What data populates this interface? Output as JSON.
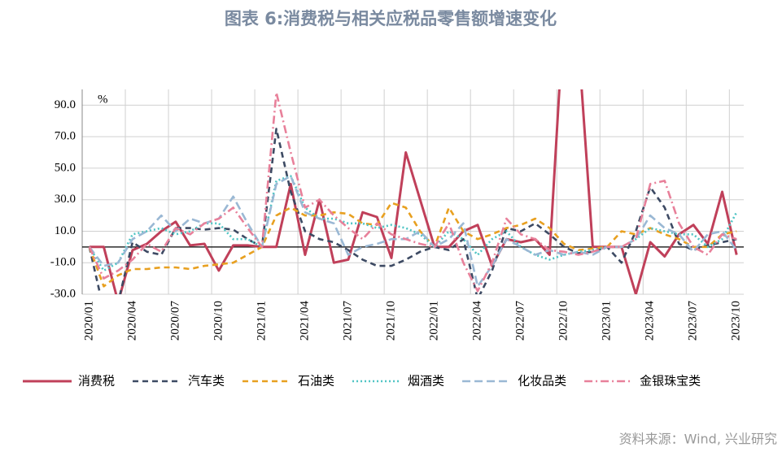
{
  "chart_data": {
    "type": "line",
    "title": "图表 6:消费税与相关应税品零售额增速变化",
    "source": "资料来源：Wind, 兴业研究",
    "unit": "%",
    "categories": [
      "2020/01",
      null,
      null,
      "2020/04",
      null,
      null,
      "2020/07",
      null,
      null,
      "2020/10",
      null,
      null,
      "2021/01",
      null,
      null,
      "2021/04",
      null,
      null,
      "2021/07",
      null,
      null,
      "2021/10",
      null,
      null,
      "2022/01",
      null,
      null,
      "2022/04",
      null,
      null,
      "2022/07",
      null,
      null,
      "2022/10",
      null,
      null,
      "2023/01",
      null,
      null,
      "2023/04",
      null,
      null,
      "2023/07",
      null,
      null,
      "2023/10"
    ],
    "ylim": [
      -30,
      100
    ],
    "yticks": [
      {
        "value": -30,
        "label": "-30.0"
      },
      {
        "value": -10,
        "label": "-10.0"
      },
      {
        "value": 10,
        "label": "10.0"
      },
      {
        "value": 30,
        "label": "30.0"
      },
      {
        "value": 50,
        "label": "50.0"
      },
      {
        "value": 70,
        "label": "70.0"
      },
      {
        "value": 90,
        "label": "90.0"
      }
    ],
    "grid": true,
    "legend": "bottom",
    "series": [
      {
        "name": "消费税",
        "color": "#c0405a",
        "dash": "solid",
        "values": [
          0,
          0,
          -35,
          -2,
          2,
          10,
          16,
          1,
          2,
          -15,
          1,
          1,
          0,
          0,
          40,
          -5,
          30,
          -10,
          -8,
          22,
          19,
          -7,
          60,
          30,
          0,
          0,
          10,
          14,
          -12,
          5,
          3,
          5,
          -5,
          150,
          130,
          0,
          0,
          0,
          -30,
          3,
          -6,
          8,
          14,
          2,
          35,
          -5
        ]
      },
      {
        "name": "汽车类",
        "color": "#3d4a63",
        "dash": "dash",
        "values": [
          0,
          -40,
          -35,
          3,
          -3,
          -5,
          12,
          12,
          11,
          12,
          11,
          5,
          0,
          75,
          35,
          10,
          5,
          3,
          -2,
          -8,
          -12,
          -12,
          -8,
          -3,
          0,
          -2,
          5,
          -33,
          -15,
          12,
          10,
          15,
          8,
          0,
          -4,
          -3,
          0,
          -10,
          10,
          38,
          25,
          2,
          -2,
          1,
          3,
          5
        ]
      },
      {
        "name": "石油类",
        "color": "#e8a020",
        "dash": "dash",
        "values": [
          0,
          -25,
          -18,
          -14,
          -14,
          -13,
          -13,
          -14,
          -12,
          -11,
          -10,
          -5,
          0,
          20,
          25,
          20,
          20,
          22,
          21,
          15,
          14,
          28,
          25,
          10,
          0,
          25,
          10,
          5,
          8,
          12,
          14,
          18,
          12,
          2,
          -2,
          -1,
          0,
          10,
          8,
          12,
          8,
          5,
          0,
          0,
          8,
          10
        ]
      },
      {
        "name": "烟酒类",
        "color": "#4fc4c4",
        "dash": "dot",
        "values": [
          0,
          -15,
          -10,
          8,
          10,
          12,
          8,
          10,
          15,
          15,
          5,
          5,
          0,
          42,
          45,
          25,
          18,
          18,
          15,
          15,
          12,
          14,
          12,
          8,
          0,
          10,
          5,
          -5,
          5,
          10,
          0,
          -5,
          -8,
          -5,
          -3,
          -2,
          0,
          0,
          5,
          12,
          10,
          8,
          8,
          0,
          5,
          22
        ]
      },
      {
        "name": "化妆品类",
        "color": "#9ab8d4",
        "dash": "longdash",
        "values": [
          0,
          -12,
          -10,
          5,
          10,
          20,
          10,
          18,
          15,
          18,
          32,
          15,
          0,
          40,
          45,
          22,
          18,
          15,
          -5,
          0,
          2,
          5,
          5,
          10,
          0,
          5,
          15,
          -25,
          -12,
          5,
          0,
          -5,
          -2,
          -5,
          -3,
          -5,
          0,
          0,
          5,
          20,
          12,
          8,
          -3,
          8,
          10,
          -2
        ]
      },
      {
        "name": "金银珠宝类",
        "color": "#e8809a",
        "dash": "dashdot",
        "values": [
          0,
          -20,
          -15,
          -8,
          2,
          -3,
          12,
          8,
          15,
          18,
          25,
          12,
          0,
          98,
          60,
          25,
          30,
          20,
          12,
          5,
          15,
          8,
          5,
          2,
          0,
          15,
          -10,
          -28,
          -10,
          18,
          8,
          5,
          -2,
          -3,
          -5,
          -3,
          0,
          0,
          5,
          40,
          42,
          15,
          0,
          -5,
          8,
          5
        ]
      }
    ]
  }
}
